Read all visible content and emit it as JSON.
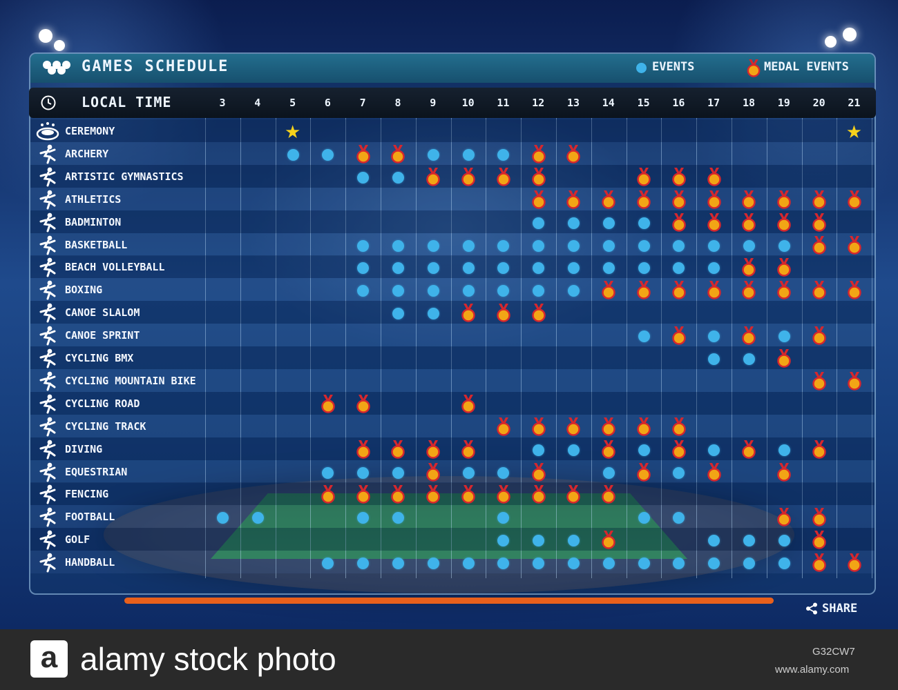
{
  "header": {
    "title": "GAMES  SCHEDULE",
    "legend_events": "EVENTS",
    "legend_medal_events": "MEDAL EVENTS",
    "local_time": "LOCAL TIME"
  },
  "days": [
    "3",
    "4",
    "5",
    "6",
    "7",
    "8",
    "9",
    "10",
    "11",
    "12",
    "13",
    "14",
    "15",
    "16",
    "17",
    "18",
    "19",
    "20",
    "21"
  ],
  "sports": [
    {
      "name": "CEREMONY",
      "icon": "ceremony-icon",
      "E": "",
      "M": "",
      "S": "5,21"
    },
    {
      "name": "ARCHERY",
      "icon": "archery-icon",
      "E": "5,6,9,10,11",
      "M": "7,8,12,13",
      "S": ""
    },
    {
      "name": "ARTISTIC GYMNASTICS",
      "icon": "gymnastics-icon",
      "E": "7,8",
      "M": "9,10,11,12,15,16,17",
      "S": ""
    },
    {
      "name": "ATHLETICS",
      "icon": "athletics-icon",
      "E": "",
      "M": "12,13,14,15,16,17,18,19,20,21",
      "S": ""
    },
    {
      "name": "BADMINTON",
      "icon": "badminton-icon",
      "E": "12,13,14,15",
      "M": "16,17,18,19,20",
      "S": ""
    },
    {
      "name": "BASKETBALL",
      "icon": "basketball-icon",
      "E": "7,8,9,10,11,12,13,14,15,16,17,18,19",
      "M": "20,21",
      "S": ""
    },
    {
      "name": "BEACH VOLLEYBALL",
      "icon": "beach-volleyball-icon",
      "E": "7,8,9,10,11,12,13,14,15,16,17",
      "M": "18,19",
      "S": ""
    },
    {
      "name": "BOXING",
      "icon": "boxing-icon",
      "E": "7,8,9,10,11,12,13",
      "M": "14,15,16,17,18,19,20,21",
      "S": ""
    },
    {
      "name": "CANOE SLALOM",
      "icon": "canoe-slalom-icon",
      "E": "8,9",
      "M": "10,11,12",
      "S": ""
    },
    {
      "name": "CANOE SPRINT",
      "icon": "canoe-sprint-icon",
      "E": "15,17,19",
      "M": "16,18,20",
      "S": ""
    },
    {
      "name": "CYCLING BMX",
      "icon": "cycling-bmx-icon",
      "E": "17,18",
      "M": "19",
      "S": ""
    },
    {
      "name": "CYCLING MOUNTAIN BIKE",
      "icon": "mountain-bike-icon",
      "E": "",
      "M": "20,21",
      "S": ""
    },
    {
      "name": "CYCLING ROAD",
      "icon": "cycling-road-icon",
      "E": "",
      "M": "6,7,10",
      "S": ""
    },
    {
      "name": "CYCLING TRACK",
      "icon": "cycling-track-icon",
      "E": "",
      "M": "11,12,13,14,15,16",
      "S": ""
    },
    {
      "name": "DIVING",
      "icon": "diving-icon",
      "E": "12,13,15,17,19",
      "M": "7,8,9,10,14,16,18,20",
      "S": ""
    },
    {
      "name": "EQUESTRIAN",
      "icon": "equestrian-icon",
      "E": "6,7,8,10,11,14,16",
      "M": "9,12,15,17,19",
      "S": ""
    },
    {
      "name": "FENCING",
      "icon": "fencing-icon",
      "E": "",
      "M": "6,7,8,9,10,11,12,13,14",
      "S": ""
    },
    {
      "name": "FOOTBALL",
      "icon": "football-icon",
      "E": "3,4,7,8,11,15,16",
      "M": "19,20",
      "S": ""
    },
    {
      "name": "GOLF",
      "icon": "golf-icon",
      "E": "11,12,13,17,18,19",
      "M": "14,20",
      "S": ""
    },
    {
      "name": "HANDBALL",
      "icon": "handball-icon",
      "E": "6,7,8,9,10,11,12,13,14,15,16,17,18,19",
      "M": "20,21",
      "S": ""
    }
  ],
  "footer": {
    "share": "SHARE",
    "brand": "alamy stock photo",
    "logo_letter": "a",
    "stock_id": "G32CW7",
    "url": "www.alamy.com"
  },
  "colors": {
    "event_dot": "#3fb3ea",
    "medal_gold": "#f2a515",
    "medal_ribbon": "#d6272d",
    "star": "#f7d21b"
  }
}
